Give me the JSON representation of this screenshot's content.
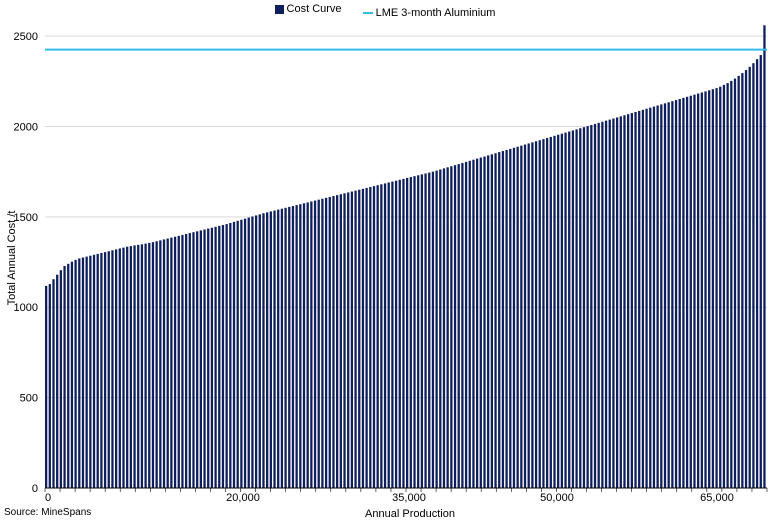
{
  "chart_data": {
    "type": "bar",
    "legend": [
      {
        "name": "Cost Curve",
        "color": "#0f1f5c",
        "marker": "bar"
      },
      {
        "name": "LME 3-month Aluminium",
        "color": "#33bde6",
        "marker": "line"
      }
    ],
    "legend_position": "top-center",
    "xlabel": "Annual Production",
    "ylabel": "Total Annual Cost /t",
    "ylim": [
      0,
      2600
    ],
    "yticks": [
      0,
      500,
      1000,
      1500,
      2000,
      2500
    ],
    "xtick_labels": [
      "0",
      "20,000",
      "35,000",
      "50,000",
      "65,000"
    ],
    "grid": "horizontal",
    "reference_line": {
      "name": "LME 3-month Aluminium",
      "value": 2425
    },
    "values": [
      1118,
      1128,
      1155,
      1180,
      1205,
      1228,
      1240,
      1252,
      1262,
      1270,
      1275,
      1280,
      1285,
      1290,
      1295,
      1300,
      1305,
      1310,
      1315,
      1320,
      1325,
      1330,
      1335,
      1338,
      1342,
      1345,
      1348,
      1352,
      1356,
      1360,
      1365,
      1370,
      1375,
      1380,
      1385,
      1390,
      1395,
      1400,
      1405,
      1410,
      1415,
      1420,
      1425,
      1430,
      1435,
      1440,
      1445,
      1450,
      1455,
      1460,
      1466,
      1472,
      1478,
      1484,
      1490,
      1496,
      1502,
      1508,
      1514,
      1520,
      1525,
      1530,
      1535,
      1540,
      1545,
      1550,
      1555,
      1560,
      1565,
      1570,
      1575,
      1580,
      1585,
      1590,
      1595,
      1600,
      1605,
      1610,
      1615,
      1620,
      1625,
      1630,
      1635,
      1640,
      1645,
      1650,
      1655,
      1660,
      1665,
      1670,
      1675,
      1680,
      1685,
      1690,
      1695,
      1700,
      1705,
      1710,
      1715,
      1720,
      1725,
      1730,
      1735,
      1740,
      1745,
      1750,
      1756,
      1762,
      1768,
      1774,
      1780,
      1786,
      1792,
      1798,
      1804,
      1810,
      1816,
      1822,
      1828,
      1834,
      1840,
      1846,
      1852,
      1858,
      1864,
      1870,
      1876,
      1882,
      1888,
      1894,
      1900,
      1906,
      1912,
      1918,
      1924,
      1930,
      1936,
      1942,
      1948,
      1954,
      1960,
      1966,
      1972,
      1978,
      1984,
      1990,
      1996,
      2002,
      2008,
      2014,
      2020,
      2026,
      2032,
      2038,
      2044,
      2050,
      2056,
      2062,
      2068,
      2074,
      2080,
      2086,
      2092,
      2098,
      2104,
      2110,
      2116,
      2122,
      2128,
      2134,
      2140,
      2146,
      2152,
      2158,
      2164,
      2170,
      2176,
      2182,
      2188,
      2194,
      2200,
      2206,
      2212,
      2220,
      2230,
      2240,
      2252,
      2265,
      2280,
      2295,
      2312,
      2330,
      2350,
      2372,
      2395,
      2560
    ]
  },
  "source": "Source: MineSpans"
}
